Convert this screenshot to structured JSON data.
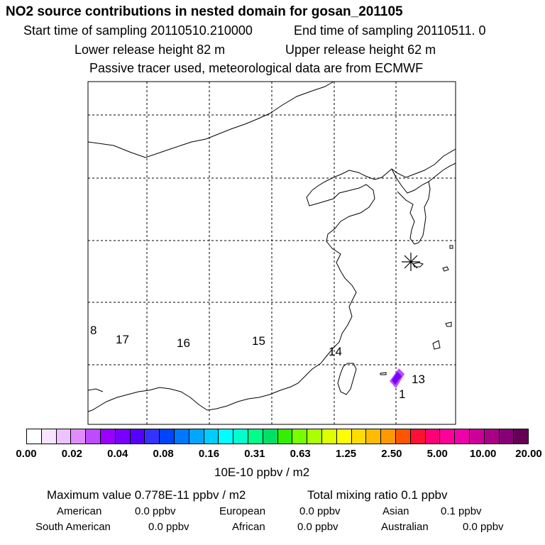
{
  "header": {
    "title": "NO2 source contributions in nested domain for gosan_201105",
    "start_time": "Start time of sampling 20110510.210000",
    "end_time": "End time of sampling 20110511.     0",
    "lower_release": "Lower release height   82 m",
    "upper_release": "Upper release height   62 m",
    "tracer_note": "Passive tracer used, meteorological data are from ECMWF"
  },
  "chart_data": {
    "type": "heatmap",
    "title": "NO2 source contributions in nested domain for gosan_201105",
    "region_labels": [
      "8",
      "17",
      "16",
      "15",
      "14",
      "13",
      "1"
    ],
    "receptor_marker": "gosan",
    "colorbar": {
      "tick_labels": [
        "0.00",
        "0.02",
        "0.04",
        "0.08",
        "0.16",
        "0.31",
        "0.63",
        "1.25",
        "2.50",
        "5.00",
        "10.00",
        "20.00"
      ],
      "colors": [
        "#ffffff",
        "#f7e4ff",
        "#ecc2ff",
        "#e08cff",
        "#bc4dff",
        "#9900ff",
        "#7700ff",
        "#5500ff",
        "#3333ff",
        "#0044ff",
        "#0077ff",
        "#00a6ff",
        "#00ccff",
        "#00ffff",
        "#00ffcc",
        "#00ff88",
        "#00e066",
        "#33ee00",
        "#77ff00",
        "#aaff00",
        "#ddff00",
        "#ffff00",
        "#ffdd00",
        "#ffbb00",
        "#ff9900",
        "#ff5500",
        "#ff1133",
        "#ff0077",
        "#ff0099",
        "#ee00aa",
        "#cc0099",
        "#aa0088",
        "#880077",
        "#660055"
      ],
      "unit": "10E-10 ppbv / m2"
    },
    "max_value": "Maximum value  0.778E-11 ppbv / m2",
    "total_mixing_ratio": "Total mixing ratio      0.1 ppbv"
  },
  "contributions": {
    "american_label": "American",
    "american_value": "0.0 ppbv",
    "european_label": "European",
    "european_value": "0.0 ppbv",
    "asian_label": "Asian",
    "asian_value": "0.1 ppbv",
    "south_american_label": "South American",
    "south_american_value": "0.0 ppbv",
    "african_label": "African",
    "african_value": "0.0 ppbv",
    "australian_label": "Australian",
    "australian_value": "0.0 ppbv"
  }
}
